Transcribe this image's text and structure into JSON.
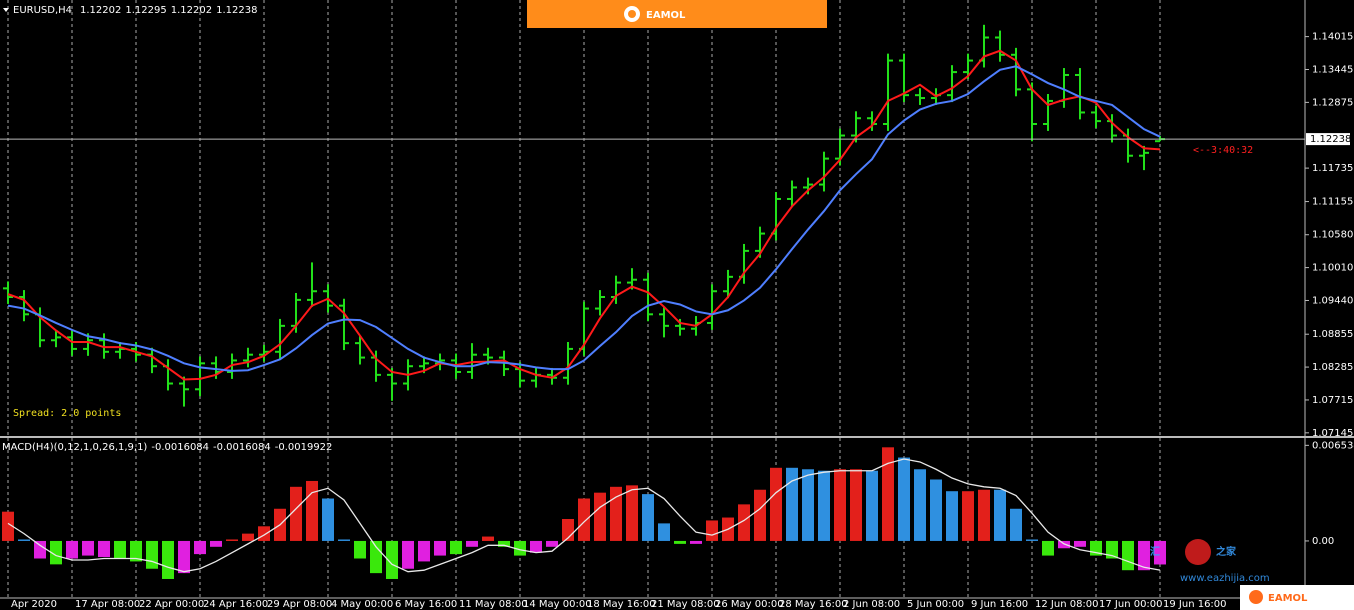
{
  "overlay": {
    "banner": "EAMOL",
    "spread": "Spread: 2.0 points",
    "countdown": "<--3:40:32",
    "watermark_a": "汇",
    "watermark_b": "之家",
    "watermark_url": "www.eazhijia.com",
    "logo": "EAMOL"
  },
  "chart_data": [
    {
      "type": "ohlc",
      "symbol": "EURUSD,H4",
      "color": "#22e01a",
      "categories": [
        "Apr 2020",
        null,
        null,
        null,
        "17 Apr 08:00",
        null,
        null,
        null,
        "22 Apr 00:00",
        null,
        null,
        null,
        "24 Apr 16:00",
        null,
        null,
        null,
        "29 Apr 08:00",
        null,
        null,
        null,
        "4 May 00:00",
        null,
        null,
        null,
        "6 May 16:00",
        null,
        null,
        null,
        "11 May 08:00",
        null,
        null,
        null,
        "14 May 00:00",
        null,
        null,
        null,
        "18 May 16:00",
        null,
        null,
        null,
        "21 May 08:00",
        null,
        null,
        null,
        "26 May 00:00",
        null,
        null,
        null,
        "28 May 16:00",
        null,
        null,
        null,
        "2 Jun 08:00",
        null,
        null,
        null,
        "5 Jun 00:00",
        null,
        null,
        null,
        "9 Jun 16:00",
        null,
        null,
        null,
        "12 Jun 08:00",
        null,
        null,
        null,
        "17 Jun 00:00",
        null,
        null,
        null,
        "19 Jun 16:00"
      ],
      "open": [
        1.0965,
        1.095,
        1.092,
        1.0875,
        1.088,
        1.086,
        1.0875,
        1.0855,
        1.086,
        1.085,
        1.083,
        1.08,
        1.079,
        1.0835,
        1.082,
        1.084,
        1.085,
        1.0855,
        1.09,
        1.0945,
        1.096,
        1.0935,
        1.087,
        1.0845,
        1.0815,
        1.08,
        1.083,
        1.0835,
        1.084,
        1.082,
        1.085,
        1.0845,
        1.0825,
        1.0805,
        1.0815,
        1.081,
        1.086,
        1.093,
        1.095,
        1.0975,
        1.098,
        1.092,
        1.09,
        1.0895,
        1.0905,
        1.096,
        1.0985,
        1.103,
        1.106,
        1.112,
        1.114,
        1.1145,
        1.119,
        1.123,
        1.126,
        1.125,
        1.136,
        1.13,
        1.1295,
        1.13,
        1.134,
        1.136,
        1.14,
        1.137,
        1.131,
        1.125,
        1.129,
        1.1335,
        1.127,
        1.1255,
        1.123,
        1.1195,
        1.12202
      ],
      "high": [
        1.0977,
        1.0962,
        1.0932,
        1.0892,
        1.0892,
        1.0887,
        1.0887,
        1.0872,
        1.0872,
        1.0862,
        1.0842,
        1.0812,
        1.0847,
        1.0847,
        1.0852,
        1.0862,
        1.0867,
        1.0912,
        1.0957,
        1.101,
        1.0972,
        1.0947,
        1.0882,
        1.0857,
        1.0827,
        1.0842,
        1.0847,
        1.0852,
        1.0852,
        1.087,
        1.0862,
        1.0857,
        1.0837,
        1.0827,
        1.0827,
        1.0872,
        1.0942,
        1.0962,
        1.0987,
        1.1,
        1.0992,
        1.0932,
        1.0912,
        1.0917,
        1.0972,
        1.0997,
        1.1042,
        1.1072,
        1.1132,
        1.1152,
        1.1157,
        1.1202,
        1.1242,
        1.1272,
        1.1272,
        1.1372,
        1.1372,
        1.1312,
        1.1312,
        1.1352,
        1.1372,
        1.1422,
        1.1412,
        1.1382,
        1.1322,
        1.1302,
        1.1347,
        1.1347,
        1.1282,
        1.1267,
        1.1242,
        1.1212,
        1.12295
      ],
      "low": [
        1.0938,
        1.0908,
        1.0863,
        1.0863,
        1.0848,
        1.0848,
        1.0843,
        1.0843,
        1.0838,
        1.0818,
        1.0788,
        1.076,
        1.0778,
        1.0808,
        1.0808,
        1.0828,
        1.0838,
        1.0843,
        1.0888,
        1.0933,
        1.0923,
        1.0858,
        1.0833,
        1.0803,
        1.077,
        1.0788,
        1.0818,
        1.0823,
        1.0808,
        1.0808,
        1.0833,
        1.0813,
        1.0793,
        1.0793,
        1.0798,
        1.0798,
        1.0848,
        1.0918,
        1.0938,
        1.0963,
        1.0908,
        1.088,
        1.0883,
        1.0883,
        1.0893,
        1.0948,
        1.0973,
        1.1018,
        1.1048,
        1.1108,
        1.1128,
        1.1133,
        1.1178,
        1.1218,
        1.1238,
        1.1238,
        1.1288,
        1.1283,
        1.1283,
        1.1288,
        1.1328,
        1.1348,
        1.1358,
        1.1298,
        1.122,
        1.1238,
        1.1278,
        1.1258,
        1.1243,
        1.1218,
        1.1183,
        1.117,
        1.12202
      ],
      "close": [
        1.095,
        1.092,
        1.0875,
        1.088,
        1.086,
        1.0875,
        1.0855,
        1.086,
        1.085,
        1.083,
        1.08,
        1.079,
        1.0835,
        1.082,
        1.084,
        1.085,
        1.0855,
        1.09,
        1.0945,
        1.096,
        1.0935,
        1.087,
        1.0845,
        1.0815,
        1.08,
        1.083,
        1.0835,
        1.084,
        1.082,
        1.085,
        1.0845,
        1.0825,
        1.0805,
        1.0815,
        1.081,
        1.086,
        1.093,
        1.095,
        1.0975,
        1.098,
        1.092,
        1.09,
        1.0895,
        1.0905,
        1.096,
        1.0985,
        1.103,
        1.106,
        1.112,
        1.114,
        1.1145,
        1.119,
        1.123,
        1.126,
        1.125,
        1.136,
        1.13,
        1.1295,
        1.13,
        1.134,
        1.136,
        1.14,
        1.137,
        1.131,
        1.125,
        1.129,
        1.1335,
        1.127,
        1.1255,
        1.123,
        1.1195,
        1.12,
        1.12238
      ],
      "series": [
        {
          "color": "#ff1a1a",
          "values": [
            1.0955,
            1.0945,
            1.0915,
            1.0892,
            1.0872,
            1.0872,
            1.0863,
            1.0863,
            1.0855,
            1.0847,
            1.0827,
            1.0807,
            1.0808,
            1.0815,
            1.0832,
            1.0837,
            1.0848,
            1.0868,
            1.09,
            1.0935,
            1.0947,
            1.0922,
            1.0883,
            1.0843,
            1.082,
            1.0815,
            1.0822,
            1.0835,
            1.0832,
            1.0837,
            1.0838,
            1.084,
            1.0825,
            1.0815,
            1.081,
            1.0828,
            1.0867,
            1.0913,
            1.0952,
            1.0968,
            1.0958,
            1.0933,
            1.0905,
            1.09,
            1.092,
            1.095,
            1.0992,
            1.1025,
            1.107,
            1.1107,
            1.1135,
            1.1158,
            1.1188,
            1.1227,
            1.1247,
            1.129,
            1.1303,
            1.1318,
            1.1298,
            1.1312,
            1.1333,
            1.1367,
            1.1377,
            1.136,
            1.131,
            1.1283,
            1.1292,
            1.1298,
            1.1287,
            1.1252,
            1.1227,
            1.1208,
            1.1206
          ]
        },
        {
          "color": "#4f7fff",
          "values": [
            1.0935,
            1.093,
            1.0918,
            1.0905,
            1.0893,
            1.0882,
            1.0877,
            1.087,
            1.0866,
            1.0859,
            1.0848,
            1.0835,
            1.0828,
            1.0825,
            1.0822,
            1.0823,
            1.0832,
            1.0842,
            1.0861,
            1.0884,
            1.0904,
            1.0911,
            1.091,
            1.0898,
            1.0879,
            1.086,
            1.0845,
            1.0837,
            1.083,
            1.083,
            1.0837,
            1.0836,
            1.0833,
            1.0828,
            1.0825,
            1.0825,
            1.084,
            1.0865,
            1.0889,
            1.0917,
            1.0935,
            1.0943,
            1.0937,
            1.0925,
            1.092,
            1.0927,
            1.0944,
            1.0966,
            1.0998,
            1.1033,
            1.1067,
            1.1099,
            1.1135,
            1.1163,
            1.1189,
            1.1232,
            1.1256,
            1.1275,
            1.1285,
            1.129,
            1.1302,
            1.1324,
            1.1344,
            1.135,
            1.1336,
            1.1321,
            1.131,
            1.1297,
            1.129,
            1.1283,
            1.1262,
            1.1241,
            1.1228
          ]
        }
      ],
      "ylim": [
        1.0709,
        1.1465
      ],
      "yticks": [
        1.14015,
        1.13445,
        1.12875,
        1.11735,
        1.11155,
        {
          "value": 1.1058,
          "label": "1.10580"
        },
        {
          "value": 1.1001,
          "label": "1.10010"
        },
        {
          "value": 1.0944,
          "label": "1.09440"
        },
        1.08855,
        1.08285,
        1.07715,
        1.07145
      ],
      "grid": true
    },
    {
      "type": "bar",
      "title": "MACD(H4)(0,12,1,0,26,1,9,1)",
      "histogram": {
        "values": [
          0.002,
          0.0001,
          -0.0012,
          -0.0016,
          -0.0012,
          -0.001,
          -0.0011,
          -0.0012,
          -0.0014,
          -0.0019,
          -0.0026,
          -0.0022,
          -0.0009,
          -0.0004,
          0.0001,
          0.0005,
          0.001,
          0.0022,
          0.0037,
          0.0041,
          0.0029,
          0.0001,
          -0.0012,
          -0.0022,
          -0.0026,
          -0.0019,
          -0.0014,
          -0.001,
          -0.0009,
          -0.0004,
          0.0003,
          -0.0004,
          -0.001,
          -0.0008,
          -0.0004,
          0.0015,
          0.0029,
          0.0033,
          0.0037,
          0.0038,
          0.0032,
          0.0012,
          -0.0002,
          -0.0002,
          0.0014,
          0.0016,
          0.0025,
          0.0035,
          0.005,
          0.005,
          0.0049,
          0.0048,
          0.0049,
          0.0049,
          0.0048,
          0.0064,
          0.0057,
          0.0049,
          0.0042,
          0.0034,
          0.0034,
          0.0035,
          0.0035,
          0.0022,
          0.0001,
          -0.001,
          -0.0005,
          -0.0004,
          -0.001,
          -0.0012,
          -0.002,
          -0.002,
          -0.0016084
        ],
        "colors": [
          "#e3201b",
          "#2f90e0",
          "#e020e0",
          "#3ae80c",
          "#e020e0",
          "#e020e0",
          "#e020e0",
          "#3ae80c",
          "#3ae80c",
          "#3ae80c",
          "#3ae80c",
          "#e020e0",
          "#e020e0",
          "#e020e0",
          "#e3201b",
          "#e3201b",
          "#e3201b",
          "#e3201b",
          "#e3201b",
          "#e3201b",
          "#2f90e0",
          "#2f90e0",
          "#3ae80c",
          "#3ae80c",
          "#3ae80c",
          "#e020e0",
          "#e020e0",
          "#e020e0",
          "#3ae80c",
          "#e020e0",
          "#e3201b",
          "#3ae80c",
          "#3ae80c",
          "#e020e0",
          "#e020e0",
          "#e3201b",
          "#e3201b",
          "#e3201b",
          "#e3201b",
          "#e3201b",
          "#2f90e0",
          "#2f90e0",
          "#3ae80c",
          "#e020e0",
          "#e3201b",
          "#e3201b",
          "#e3201b",
          "#e3201b",
          "#e3201b",
          "#2f90e0",
          "#2f90e0",
          "#2f90e0",
          "#e3201b",
          "#e3201b",
          "#2f90e0",
          "#e3201b",
          "#2f90e0",
          "#2f90e0",
          "#2f90e0",
          "#2f90e0",
          "#e3201b",
          "#e3201b",
          "#2f90e0",
          "#2f90e0",
          "#2f90e0",
          "#3ae80c",
          "#e020e0",
          "#e020e0",
          "#3ae80c",
          "#3ae80c",
          "#3ae80c",
          "#e020e0",
          "#e020e0"
        ]
      },
      "signal": {
        "color": "#e8e8e8",
        "values": [
          0.0012,
          0.0005,
          -0.0003,
          -0.001,
          -0.0013,
          -0.0013,
          -0.0012,
          -0.0012,
          -0.0012,
          -0.0014,
          -0.0018,
          -0.0021,
          -0.0019,
          -0.0014,
          -0.0008,
          -0.0002,
          0.0004,
          0.0011,
          0.0022,
          0.0033,
          0.0036,
          0.0028,
          0.0012,
          -0.0004,
          -0.0016,
          -0.0021,
          -0.002,
          -0.0016,
          -0.0012,
          -0.0008,
          -0.0003,
          -0.0003,
          -0.0006,
          -0.0008,
          -0.0007,
          0.0002,
          0.0013,
          0.0023,
          0.003,
          0.0035,
          0.0036,
          0.0029,
          0.0017,
          0.0006,
          0.0004,
          0.0008,
          0.0014,
          0.0022,
          0.0033,
          0.0041,
          0.0045,
          0.0047,
          0.0048,
          0.0048,
          0.0048,
          0.0053,
          0.0056,
          0.0054,
          0.0049,
          0.0043,
          0.0039,
          0.0037,
          0.0036,
          0.0031,
          0.0019,
          0.0006,
          -0.0002,
          -0.0006,
          -0.0008,
          -0.001,
          -0.0014,
          -0.0018,
          -0.0019922
        ]
      },
      "ylim": [
        -0.0039,
        0.0069
      ],
      "yticks": [
        0.0065349,
        {
          "value": 0,
          "label": "0.00"
        }
      ]
    }
  ]
}
